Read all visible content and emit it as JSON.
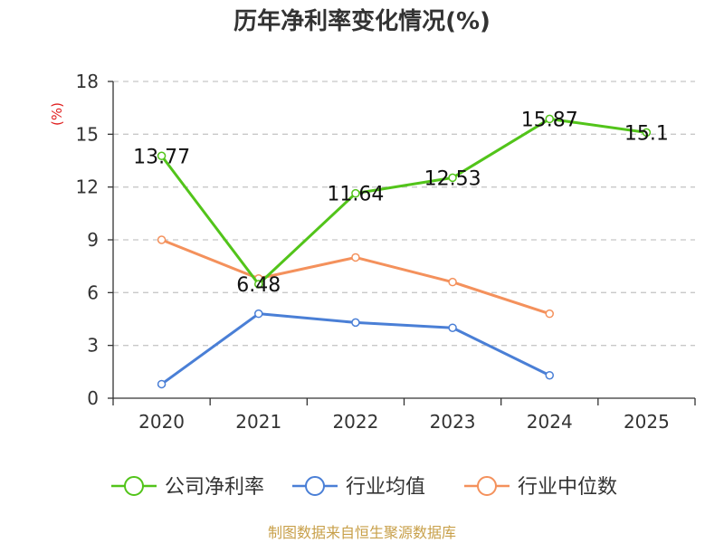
{
  "chart_data": {
    "type": "line",
    "title": "历年净利率变化情况(%)",
    "ylabel": "(%)",
    "xlabel": "",
    "categories": [
      "2020",
      "2021",
      "2022",
      "2023",
      "2024",
      "2025"
    ],
    "yticks": [
      "0",
      "3",
      "6",
      "9",
      "12",
      "15",
      "18"
    ],
    "ylim": [
      0,
      18
    ],
    "grid": true,
    "legend_position": "bottom",
    "series": [
      {
        "name": "公司净利率",
        "color": "#52c41a",
        "values": [
          13.77,
          6.48,
          11.64,
          12.53,
          15.87,
          15.1
        ],
        "labels": [
          "13.77",
          "6.48",
          "11.64",
          "12.53",
          "15.87",
          "15.1"
        ]
      },
      {
        "name": "行业均值",
        "color": "#4a7fd6",
        "values": [
          0.8,
          4.8,
          4.3,
          4.0,
          1.3,
          null
        ]
      },
      {
        "name": "行业中位数",
        "color": "#f4915c",
        "values": [
          9.0,
          6.8,
          8.0,
          6.6,
          4.8,
          null
        ]
      }
    ]
  },
  "footer": {
    "source": "制图数据来自恒生聚源数据库"
  }
}
